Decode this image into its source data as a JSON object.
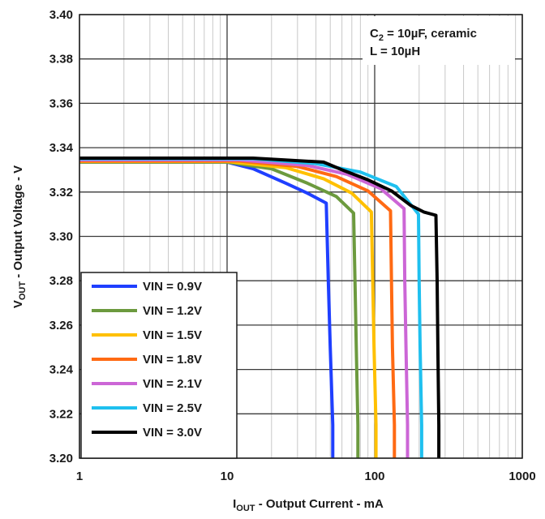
{
  "chart_data": {
    "type": "line",
    "x_scale": "log",
    "xlim": [
      1,
      1000
    ],
    "ylim": [
      3.2,
      3.4
    ],
    "x_ticks": [
      1,
      10,
      100,
      1000
    ],
    "x_tick_labels": [
      "1",
      "10",
      "100",
      "1000"
    ],
    "y_ticks": [
      3.2,
      3.22,
      3.24,
      3.26,
      3.28,
      3.3,
      3.32,
      3.34,
      3.36,
      3.38,
      3.4
    ],
    "y_tick_labels": [
      "3.20",
      "3.22",
      "3.24",
      "3.26",
      "3.28",
      "3.30",
      "3.32",
      "3.34",
      "3.36",
      "3.38",
      "3.40"
    ],
    "xlabel": {
      "main": "I",
      "sub": "OUT",
      "rest": " - Output Current - mA"
    },
    "ylabel": {
      "main": "V",
      "sub": "OUT",
      "rest": " - Output Voltage - V"
    },
    "grid": true,
    "legend_position": "bottom-left",
    "annotation": {
      "line1": {
        "main": "C",
        "sub": "2",
        "rest": " = 10µF, ceramic"
      },
      "line2": "L = 10µH"
    },
    "series": [
      {
        "name": "VIN = 0.9V",
        "color": "#1f3fff",
        "x": [
          1,
          10,
          15,
          25,
          35,
          47,
          48.5,
          50,
          52,
          52
        ],
        "y": [
          3.3335,
          3.3335,
          3.3305,
          3.324,
          3.3195,
          3.315,
          3.28,
          3.25,
          3.215,
          3.2
        ]
      },
      {
        "name": "VIN = 1.2V",
        "color": "#6c9a3e",
        "x": [
          1,
          10,
          20,
          35,
          55,
          72,
          73.5,
          75,
          77,
          77
        ],
        "y": [
          3.3335,
          3.3335,
          3.3305,
          3.324,
          3.318,
          3.3105,
          3.28,
          3.25,
          3.215,
          3.2
        ]
      },
      {
        "name": "VIN = 1.5V",
        "color": "#ffc000",
        "x": [
          1,
          10,
          25,
          45,
          70,
          95,
          97,
          99,
          102,
          102
        ],
        "y": [
          3.3338,
          3.3338,
          3.331,
          3.326,
          3.3195,
          3.311,
          3.28,
          3.25,
          3.215,
          3.2
        ]
      },
      {
        "name": "VIN = 1.8V",
        "color": "#ff6a13",
        "x": [
          1,
          12,
          30,
          55,
          90,
          128,
          130,
          132,
          136,
          136
        ],
        "y": [
          3.334,
          3.334,
          3.3315,
          3.327,
          3.3205,
          3.3115,
          3.28,
          3.25,
          3.215,
          3.2
        ]
      },
      {
        "name": "VIN = 2.1V",
        "color": "#cc66d6",
        "x": [
          1,
          12,
          35,
          65,
          110,
          158,
          160,
          163,
          167,
          167
        ],
        "y": [
          3.3345,
          3.3345,
          3.332,
          3.328,
          3.3215,
          3.3125,
          3.28,
          3.25,
          3.215,
          3.2
        ]
      },
      {
        "name": "VIN = 2.5V",
        "color": "#1fc0ef",
        "x": [
          1,
          15,
          40,
          80,
          140,
          198,
          200,
          203,
          208,
          208
        ],
        "y": [
          3.335,
          3.335,
          3.3328,
          3.329,
          3.3225,
          3.31,
          3.28,
          3.25,
          3.215,
          3.2
        ]
      },
      {
        "name": "VIN = 3.0V",
        "color": "#000000",
        "x": [
          1,
          15,
          45,
          60,
          90,
          130,
          175,
          215,
          260,
          265,
          268,
          272,
          272
        ],
        "y": [
          3.3353,
          3.3353,
          3.3335,
          3.33,
          3.3255,
          3.3205,
          3.314,
          3.311,
          3.3095,
          3.28,
          3.25,
          3.215,
          3.2
        ]
      }
    ]
  }
}
